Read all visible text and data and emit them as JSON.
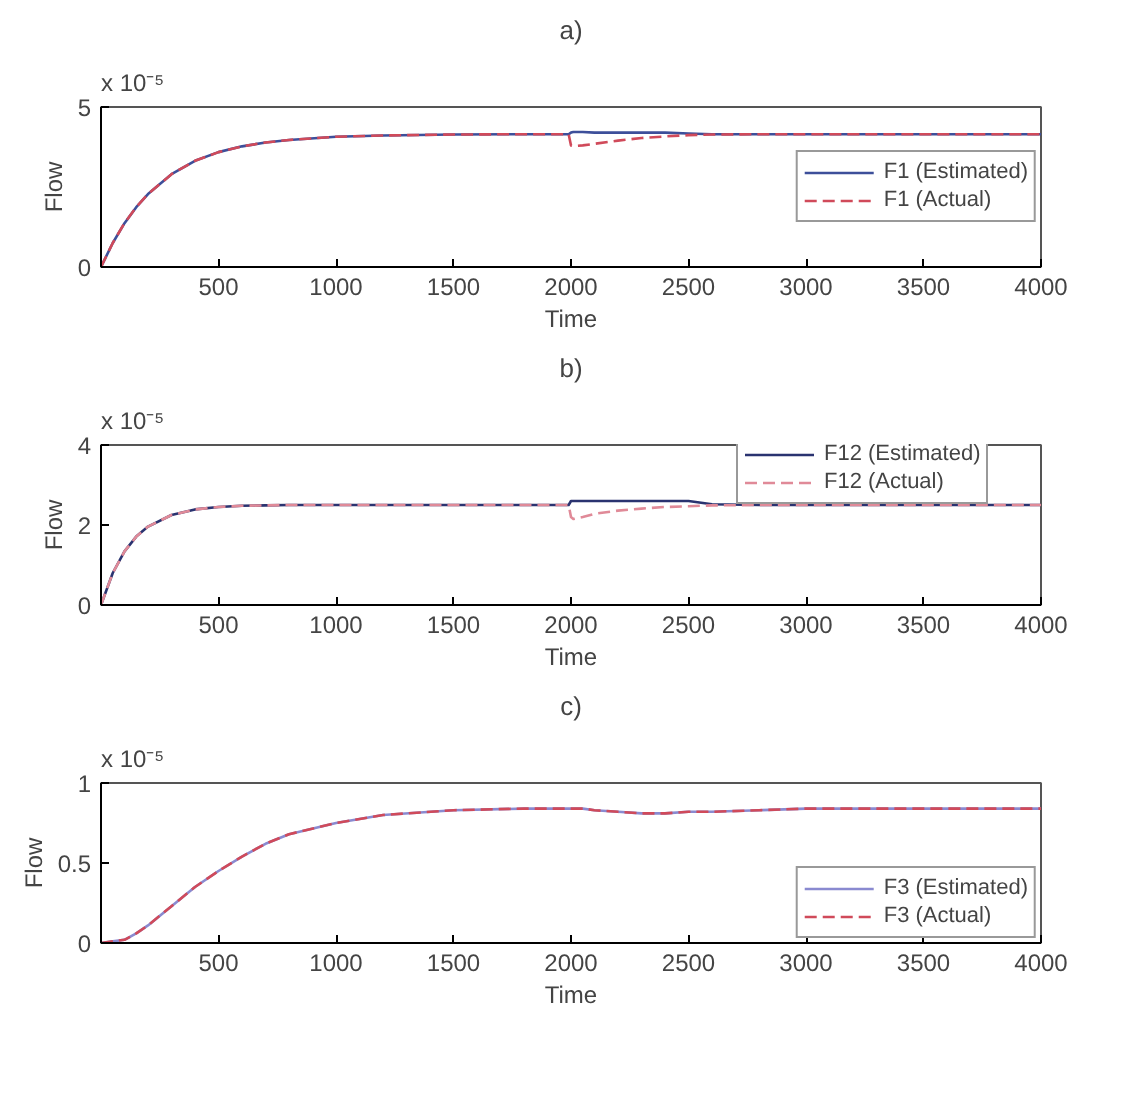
{
  "chart_data": [
    {
      "type": "line",
      "title": "a)",
      "xlabel": "Time",
      "ylabel": "Flow",
      "annotations": [
        "x 10⁻⁵"
      ],
      "xlim": [
        0,
        4000
      ],
      "ylim": [
        0,
        5
      ],
      "xticks": [
        500,
        1000,
        1500,
        2000,
        2500,
        3000,
        3500,
        4000
      ],
      "yticks": [
        0,
        5
      ],
      "grid": false,
      "legend": "right",
      "x": [
        0,
        50,
        100,
        150,
        200,
        300,
        400,
        500,
        600,
        700,
        800,
        1000,
        1200,
        1500,
        1800,
        1990,
        2000,
        2010,
        2050,
        2100,
        2200,
        2300,
        2400,
        2500,
        2600,
        2800,
        3000,
        3500,
        4000
      ],
      "series": [
        {
          "name": "F1 (Estimated)",
          "color": "#3d4f9a",
          "line_style": "solid",
          "values": [
            0,
            0.75,
            1.37,
            1.87,
            2.28,
            2.9,
            3.32,
            3.59,
            3.77,
            3.89,
            3.97,
            4.07,
            4.11,
            4.14,
            4.15,
            4.15,
            4.2,
            4.22,
            4.22,
            4.2,
            4.2,
            4.2,
            4.2,
            4.17,
            4.15,
            4.15,
            4.15,
            4.15,
            4.15
          ]
        },
        {
          "name": "F1 (Actual)",
          "color": "#d04a5a",
          "line_style": "dashed",
          "values": [
            0,
            0.75,
            1.37,
            1.87,
            2.28,
            2.9,
            3.32,
            3.59,
            3.77,
            3.89,
            3.97,
            4.07,
            4.11,
            4.14,
            4.15,
            4.15,
            3.8,
            3.78,
            3.8,
            3.85,
            3.95,
            4.03,
            4.08,
            4.12,
            4.14,
            4.15,
            4.15,
            4.15,
            4.15
          ]
        }
      ]
    },
    {
      "type": "line",
      "title": "b)",
      "xlabel": "Time",
      "ylabel": "Flow",
      "annotations": [
        "x 10⁻⁵"
      ],
      "xlim": [
        0,
        4000
      ],
      "ylim": [
        0,
        4
      ],
      "xticks": [
        500,
        1000,
        1500,
        2000,
        2500,
        3000,
        3500,
        4000
      ],
      "yticks": [
        0,
        2,
        4
      ],
      "grid": false,
      "legend": "top right",
      "x": [
        0,
        50,
        100,
        150,
        200,
        300,
        400,
        500,
        600,
        700,
        800,
        1000,
        1200,
        1500,
        1800,
        1990,
        2000,
        2010,
        2050,
        2100,
        2200,
        2300,
        2400,
        2500,
        2600,
        2800,
        3000,
        3500,
        4000
      ],
      "series": [
        {
          "name": "F12 (Estimated)",
          "color": "#2a3370",
          "line_style": "solid",
          "values": [
            0,
            0.8,
            1.34,
            1.71,
            1.96,
            2.25,
            2.39,
            2.45,
            2.48,
            2.49,
            2.5,
            2.5,
            2.5,
            2.5,
            2.5,
            2.5,
            2.6,
            2.6,
            2.6,
            2.6,
            2.6,
            2.6,
            2.6,
            2.6,
            2.52,
            2.5,
            2.5,
            2.5,
            2.5
          ]
        },
        {
          "name": "F12 (Actual)",
          "color": "#e08a98",
          "line_style": "dashed",
          "values": [
            0,
            0.8,
            1.34,
            1.71,
            1.96,
            2.25,
            2.39,
            2.45,
            2.48,
            2.49,
            2.5,
            2.5,
            2.5,
            2.5,
            2.5,
            2.5,
            2.2,
            2.15,
            2.2,
            2.28,
            2.36,
            2.41,
            2.45,
            2.47,
            2.49,
            2.5,
            2.5,
            2.5,
            2.5
          ]
        }
      ]
    },
    {
      "type": "line",
      "title": "c)",
      "xlabel": "Time",
      "ylabel": "Flow",
      "annotations": [
        "x 10⁻⁵"
      ],
      "xlim": [
        0,
        4000
      ],
      "ylim": [
        0,
        1
      ],
      "xticks": [
        500,
        1000,
        1500,
        2000,
        2500,
        3000,
        3500,
        4000
      ],
      "yticks": [
        0,
        0.5,
        1
      ],
      "grid": false,
      "legend": "bottom right",
      "x": [
        0,
        50,
        100,
        150,
        200,
        300,
        400,
        500,
        600,
        700,
        800,
        1000,
        1200,
        1500,
        1800,
        1990,
        2000,
        2010,
        2050,
        2100,
        2200,
        2300,
        2400,
        2500,
        2600,
        2800,
        3000,
        3500,
        4000
      ],
      "series": [
        {
          "name": "F3 (Estimated)",
          "color": "#8a8ad0",
          "line_style": "solid",
          "values": [
            0,
            0.01,
            0.02,
            0.06,
            0.11,
            0.23,
            0.35,
            0.45,
            0.54,
            0.62,
            0.68,
            0.75,
            0.8,
            0.83,
            0.84,
            0.84,
            0.84,
            0.84,
            0.84,
            0.83,
            0.82,
            0.81,
            0.81,
            0.82,
            0.82,
            0.83,
            0.84,
            0.84,
            0.84
          ]
        },
        {
          "name": "F3 (Actual)",
          "color": "#d04a5a",
          "line_style": "dashed",
          "values": [
            0,
            0.01,
            0.02,
            0.06,
            0.11,
            0.23,
            0.35,
            0.45,
            0.54,
            0.62,
            0.68,
            0.75,
            0.8,
            0.83,
            0.84,
            0.84,
            0.84,
            0.84,
            0.84,
            0.83,
            0.82,
            0.81,
            0.81,
            0.82,
            0.82,
            0.83,
            0.84,
            0.84,
            0.84
          ]
        }
      ]
    }
  ]
}
